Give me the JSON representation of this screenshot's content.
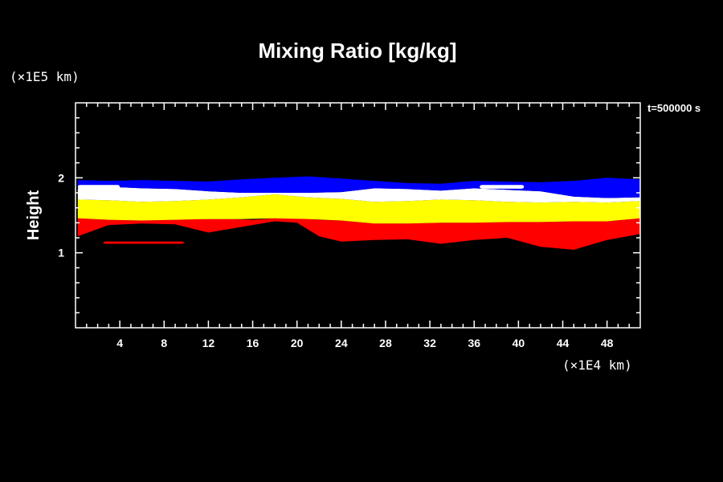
{
  "chart_data": {
    "type": "contour",
    "title": "Mixing Ratio [kg/kg]",
    "ylabel": "Height",
    "y_unit": "(×1E5 km)",
    "x_unit": "(×1E4 km)",
    "time_label": "t=500000 s",
    "xlim": [
      0,
      51
    ],
    "ylim": [
      0,
      3
    ],
    "x_ticks": [
      4,
      8,
      12,
      16,
      20,
      24,
      28,
      32,
      36,
      40,
      44,
      48
    ],
    "y_ticks": [
      1,
      2
    ],
    "x_minor_step": 1,
    "y_minor_step": 0.2,
    "layers": [
      {
        "color": "#ff0000",
        "profile": [
          {
            "x": 0.2,
            "bottom": 1.22,
            "top": 1.46
          },
          {
            "x": 3.0,
            "bottom": 1.37,
            "top": 1.44
          },
          {
            "x": 6.0,
            "bottom": 1.39,
            "top": 1.43
          },
          {
            "x": 9.0,
            "bottom": 1.38,
            "top": 1.44
          },
          {
            "x": 12.0,
            "bottom": 1.27,
            "top": 1.45
          },
          {
            "x": 14.0,
            "bottom": 1.32,
            "top": 1.45
          },
          {
            "x": 16.0,
            "bottom": 1.37,
            "top": 1.44
          },
          {
            "x": 18.0,
            "bottom": 1.42,
            "top": 1.46
          },
          {
            "x": 20.0,
            "bottom": 1.4,
            "top": 1.46
          },
          {
            "x": 22.0,
            "bottom": 1.22,
            "top": 1.44
          },
          {
            "x": 24.0,
            "bottom": 1.15,
            "top": 1.43
          },
          {
            "x": 27.0,
            "bottom": 1.17,
            "top": 1.39
          },
          {
            "x": 30.0,
            "bottom": 1.18,
            "top": 1.39
          },
          {
            "x": 33.0,
            "bottom": 1.12,
            "top": 1.4
          },
          {
            "x": 36.0,
            "bottom": 1.17,
            "top": 1.4
          },
          {
            "x": 39.0,
            "bottom": 1.2,
            "top": 1.41
          },
          {
            "x": 42.0,
            "bottom": 1.08,
            "top": 1.41
          },
          {
            "x": 45.0,
            "bottom": 1.04,
            "top": 1.42
          },
          {
            "x": 48.0,
            "bottom": 1.17,
            "top": 1.42
          },
          {
            "x": 51.0,
            "bottom": 1.25,
            "top": 1.46
          }
        ]
      },
      {
        "color": "#ffff00",
        "profile": [
          {
            "x": 0.2,
            "bottom": 1.46,
            "top": 1.71
          },
          {
            "x": 3.0,
            "bottom": 1.44,
            "top": 1.7
          },
          {
            "x": 6.0,
            "bottom": 1.43,
            "top": 1.68
          },
          {
            "x": 9.0,
            "bottom": 1.44,
            "top": 1.69
          },
          {
            "x": 12.0,
            "bottom": 1.45,
            "top": 1.71
          },
          {
            "x": 15.0,
            "bottom": 1.45,
            "top": 1.74
          },
          {
            "x": 18.0,
            "bottom": 1.46,
            "top": 1.78
          },
          {
            "x": 21.0,
            "bottom": 1.45,
            "top": 1.74
          },
          {
            "x": 24.0,
            "bottom": 1.43,
            "top": 1.72
          },
          {
            "x": 27.0,
            "bottom": 1.39,
            "top": 1.68
          },
          {
            "x": 30.0,
            "bottom": 1.39,
            "top": 1.69
          },
          {
            "x": 33.0,
            "bottom": 1.4,
            "top": 1.71
          },
          {
            "x": 36.0,
            "bottom": 1.4,
            "top": 1.7
          },
          {
            "x": 39.0,
            "bottom": 1.41,
            "top": 1.68
          },
          {
            "x": 42.0,
            "bottom": 1.41,
            "top": 1.67
          },
          {
            "x": 45.0,
            "bottom": 1.42,
            "top": 1.68
          },
          {
            "x": 48.0,
            "bottom": 1.42,
            "top": 1.67
          },
          {
            "x": 51.0,
            "bottom": 1.46,
            "top": 1.69
          }
        ]
      },
      {
        "color": "#ffffff",
        "profile": [
          {
            "x": 0.2,
            "bottom": 1.71,
            "top": 1.86
          },
          {
            "x": 3.0,
            "bottom": 1.7,
            "top": 1.88
          },
          {
            "x": 6.0,
            "bottom": 1.68,
            "top": 1.86
          },
          {
            "x": 9.0,
            "bottom": 1.69,
            "top": 1.85
          },
          {
            "x": 12.0,
            "bottom": 1.71,
            "top": 1.82
          },
          {
            "x": 15.0,
            "bottom": 1.74,
            "top": 1.8
          },
          {
            "x": 18.0,
            "bottom": 1.78,
            "top": 1.8
          },
          {
            "x": 21.0,
            "bottom": 1.74,
            "top": 1.8
          },
          {
            "x": 24.0,
            "bottom": 1.72,
            "top": 1.81
          },
          {
            "x": 27.0,
            "bottom": 1.68,
            "top": 1.86
          },
          {
            "x": 30.0,
            "bottom": 1.69,
            "top": 1.85
          },
          {
            "x": 33.0,
            "bottom": 1.71,
            "top": 1.83
          },
          {
            "x": 36.0,
            "bottom": 1.7,
            "top": 1.86
          },
          {
            "x": 39.0,
            "bottom": 1.68,
            "top": 1.84
          },
          {
            "x": 42.0,
            "bottom": 1.67,
            "top": 1.82
          },
          {
            "x": 45.0,
            "bottom": 1.68,
            "top": 1.75
          },
          {
            "x": 48.0,
            "bottom": 1.67,
            "top": 1.73
          },
          {
            "x": 51.0,
            "bottom": 1.69,
            "top": 1.74
          }
        ]
      },
      {
        "color": "#0000ff",
        "profile": [
          {
            "x": 0.2,
            "bottom": 1.86,
            "top": 1.97
          },
          {
            "x": 3.0,
            "bottom": 1.88,
            "top": 1.96
          },
          {
            "x": 6.0,
            "bottom": 1.86,
            "top": 1.97
          },
          {
            "x": 9.0,
            "bottom": 1.85,
            "top": 1.96
          },
          {
            "x": 12.0,
            "bottom": 1.82,
            "top": 1.95
          },
          {
            "x": 15.0,
            "bottom": 1.8,
            "top": 1.98
          },
          {
            "x": 18.0,
            "bottom": 1.8,
            "top": 2.0
          },
          {
            "x": 21.0,
            "bottom": 1.8,
            "top": 2.02
          },
          {
            "x": 24.0,
            "bottom": 1.81,
            "top": 1.99
          },
          {
            "x": 27.0,
            "bottom": 1.86,
            "top": 1.96
          },
          {
            "x": 30.0,
            "bottom": 1.85,
            "top": 1.93
          },
          {
            "x": 33.0,
            "bottom": 1.83,
            "top": 1.92
          },
          {
            "x": 36.0,
            "bottom": 1.86,
            "top": 1.96
          },
          {
            "x": 39.0,
            "bottom": 1.84,
            "top": 1.95
          },
          {
            "x": 42.0,
            "bottom": 1.82,
            "top": 1.94
          },
          {
            "x": 45.0,
            "bottom": 1.75,
            "top": 1.96
          },
          {
            "x": 48.0,
            "bottom": 1.73,
            "top": 2.0
          },
          {
            "x": 51.0,
            "bottom": 1.74,
            "top": 1.98
          }
        ]
      }
    ],
    "extra_patches": [
      {
        "color": "#ff0000",
        "x_start": 2.5,
        "x_end": 9.8,
        "y_center": 1.135,
        "thickness": 0.03
      },
      {
        "color": "#ffffff",
        "x_start": 0.2,
        "x_end": 4.0,
        "y_center": 1.88,
        "thickness": 0.05
      },
      {
        "color": "#ffffff",
        "x_start": 36.5,
        "x_end": 40.5,
        "y_center": 1.88,
        "thickness": 0.05
      }
    ]
  }
}
